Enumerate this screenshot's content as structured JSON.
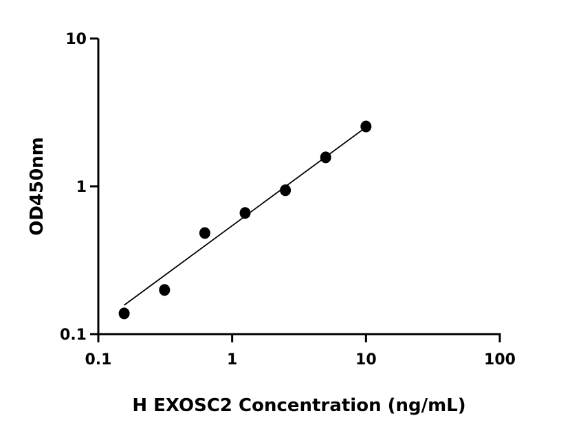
{
  "chart_data": {
    "type": "scatter",
    "title": "",
    "xlabel": "H EXOSC2 Concentration (ng/mL)",
    "ylabel": "OD450nm",
    "x_scale": "log",
    "y_scale": "log",
    "xlim": [
      0.1,
      100
    ],
    "ylim": [
      0.1,
      10
    ],
    "x_ticks": [
      "0.1",
      "1",
      "10",
      "100"
    ],
    "y_ticks": [
      "0.1",
      "1",
      "10"
    ],
    "grid": false,
    "series": [
      {
        "x": [
          0.156,
          0.3125,
          0.625,
          1.25,
          2.5,
          5,
          10
        ],
        "y": [
          0.138,
          0.199,
          0.483,
          0.66,
          0.94,
          1.57,
          2.54
        ]
      }
    ],
    "fit_line": {
      "x": [
        0.156,
        10
      ],
      "y": [
        0.157,
        2.51
      ]
    },
    "colors": {
      "points": "#000000",
      "line": "#000000",
      "axes": "#000000"
    }
  }
}
